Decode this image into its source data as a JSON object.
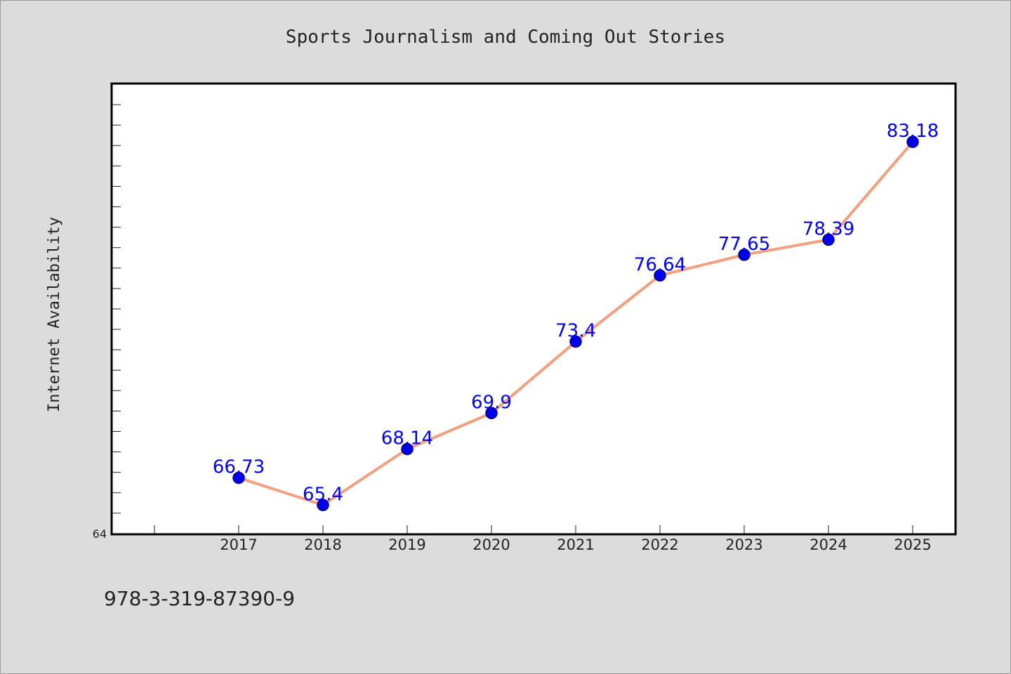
{
  "chart_data": {
    "type": "line",
    "title": "Sports Journalism and Coming Out Stories",
    "xlabel": "",
    "ylabel": "Internet Availability",
    "categories": [
      "2017",
      "2018",
      "2019",
      "2020",
      "2021",
      "2022",
      "2023",
      "2024",
      "2025"
    ],
    "series": [
      {
        "values": [
          66.73,
          65.4,
          68.14,
          69.9,
          73.4,
          76.64,
          77.65,
          78.39,
          83.18
        ],
        "labels": [
          "66.73",
          "65.4",
          "68.14",
          "69.9",
          "73.4",
          "76.64",
          "77.65",
          "78.39",
          "83.18"
        ]
      }
    ],
    "ylim": [
      64,
      86
    ],
    "ytick_label": "64",
    "grid": false,
    "legend": "none",
    "colors": {
      "line": "#f4a07e",
      "marker": "#0000ee",
      "marker_edge": "#00007a",
      "data_label": "#0000ff",
      "background": "#dcdcdc",
      "plot_background": "#ffffff"
    }
  },
  "footer_text": "978-3-319-87390-9"
}
